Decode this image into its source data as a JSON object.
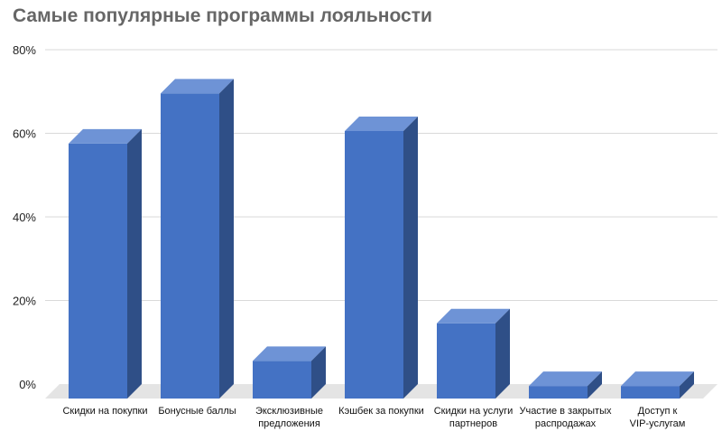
{
  "chart_data": {
    "type": "bar",
    "title": "Самые популярные программы лояльности",
    "categories": [
      [
        "Скидки на покупки"
      ],
      [
        "Бонусные баллы"
      ],
      [
        "Эксклюзивные",
        "предложения"
      ],
      [
        "Кэшбек за покупки"
      ],
      [
        "Скидки на услуги",
        "партнеров"
      ],
      [
        "Участие в закрытых",
        "распродажах"
      ],
      [
        "Доступ к",
        "VIP-услугам"
      ]
    ],
    "values": [
      61,
      73,
      9,
      64,
      18,
      3,
      3
    ],
    "yticks": [
      "0%",
      "20%",
      "40%",
      "60%",
      "80%"
    ],
    "ylim": [
      0,
      80
    ],
    "grid": true,
    "style": "3d-bar",
    "colors": {
      "front": "#4472c4",
      "top": "#6e93d6",
      "side": "#2f4f87",
      "grid": "#d9d9d9",
      "floor": "#e4e4e4"
    }
  }
}
